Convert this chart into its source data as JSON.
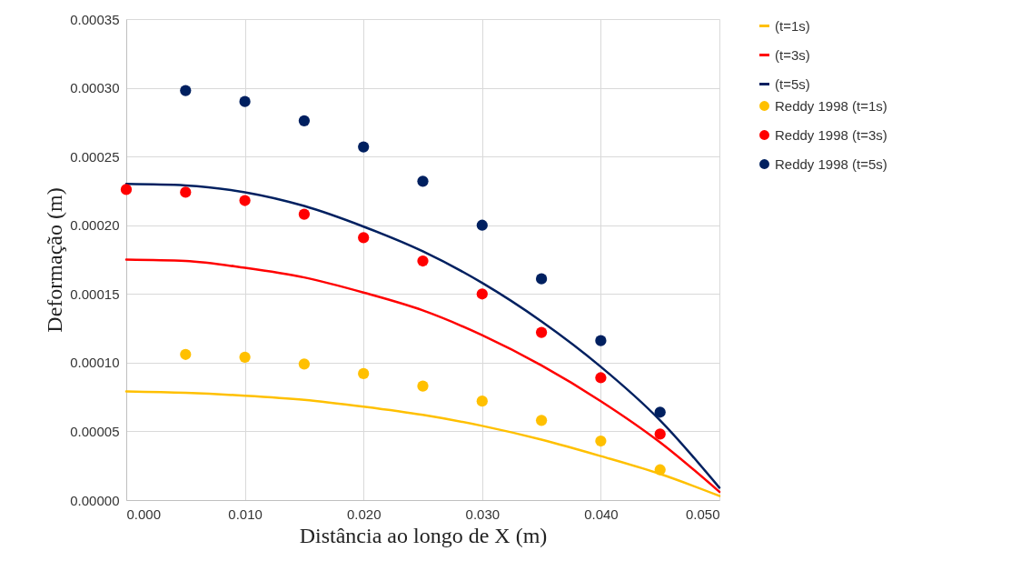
{
  "chart_data": {
    "type": "line",
    "xlabel": "Distância ao longo de X (m)",
    "ylabel": "Deformação (m)",
    "xlim": [
      0,
      0.05
    ],
    "xticks": [
      {
        "value": 0,
        "label": "0.000"
      },
      {
        "value": 0.01,
        "label": "0.010"
      },
      {
        "value": 0.02,
        "label": "0.020"
      },
      {
        "value": 0.03,
        "label": "0.030"
      },
      {
        "value": 0.04,
        "label": "0.040"
      },
      {
        "value": 0.05,
        "label": "0.050"
      }
    ],
    "ylim": [
      0,
      0.00035
    ],
    "yticks": [
      {
        "value": 0,
        "label": "0.00000"
      },
      {
        "value": 5e-05,
        "label": "0.00005"
      },
      {
        "value": 0.0001,
        "label": "0.00010"
      },
      {
        "value": 0.00015,
        "label": "0.00015"
      },
      {
        "value": 0.0002,
        "label": "0.00020"
      },
      {
        "value": 0.00025,
        "label": "0.00025"
      },
      {
        "value": 0.0003,
        "label": "0.00030"
      },
      {
        "value": 0.00035,
        "label": "0.00035"
      }
    ],
    "grid": true,
    "legend": "right",
    "series": [
      {
        "name": "(t=1s)",
        "color": "#ffc000",
        "x": [
          0,
          0.005,
          0.01,
          0.015,
          0.02,
          0.025,
          0.03,
          0.035,
          0.04,
          0.045,
          0.05
        ],
        "values": [
          7.9e-05,
          7.8e-05,
          7.6e-05,
          7.3e-05,
          6.8e-05,
          6.2e-05,
          5.4e-05,
          4.4e-05,
          3.2e-05,
          1.9e-05,
          3e-06
        ]
      },
      {
        "name": "(t=3s)",
        "color": "#ff0000",
        "x": [
          0,
          0.005,
          0.01,
          0.015,
          0.02,
          0.025,
          0.03,
          0.035,
          0.04,
          0.045,
          0.05
        ],
        "values": [
          0.000175,
          0.000174,
          0.000169,
          0.000162,
          0.000151,
          0.000138,
          0.00012,
          9.8e-05,
          7.2e-05,
          4.2e-05,
          6e-06
        ]
      },
      {
        "name": "(t=5s)",
        "color": "#002060",
        "x": [
          0,
          0.005,
          0.01,
          0.015,
          0.02,
          0.025,
          0.03,
          0.035,
          0.04,
          0.045,
          0.05
        ],
        "values": [
          0.00023,
          0.000229,
          0.000224,
          0.000214,
          0.000199,
          0.000181,
          0.000158,
          0.00013,
          9.7e-05,
          5.8e-05,
          9e-06
        ]
      },
      {
        "type": "scatter",
        "name": "Reddy 1998 (t=1s)",
        "color": "#ffc000",
        "x": [
          0.005,
          0.01,
          0.015,
          0.02,
          0.025,
          0.03,
          0.035,
          0.04,
          0.045
        ],
        "values": [
          0.000106,
          0.000104,
          9.9e-05,
          9.2e-05,
          8.3e-05,
          7.2e-05,
          5.8e-05,
          4.3e-05,
          2.2e-05
        ]
      },
      {
        "type": "scatter",
        "name": "Reddy 1998 (t=3s)",
        "color": "#ff0000",
        "x": [
          0,
          0.005,
          0.01,
          0.015,
          0.02,
          0.025,
          0.03,
          0.035,
          0.04,
          0.045
        ],
        "values": [
          0.000226,
          0.000224,
          0.000218,
          0.000208,
          0.000191,
          0.000174,
          0.00015,
          0.000122,
          8.9e-05,
          4.8e-05
        ]
      },
      {
        "type": "scatter",
        "name": "Reddy 1998 (t=5s)",
        "color": "#002060",
        "x": [
          0.005,
          0.01,
          0.015,
          0.02,
          0.025,
          0.03,
          0.035,
          0.04,
          0.045
        ],
        "values": [
          0.000298,
          0.00029,
          0.000276,
          0.000257,
          0.000232,
          0.0002,
          0.000161,
          0.000116,
          6.4e-05
        ]
      }
    ]
  }
}
